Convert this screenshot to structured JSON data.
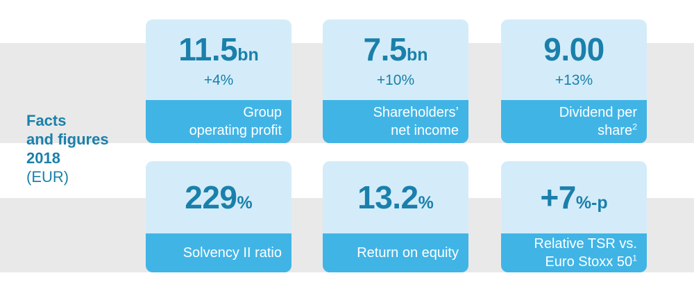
{
  "title": {
    "lines": [
      "Facts",
      "and figures",
      "2018"
    ],
    "eur": "(EUR)"
  },
  "colors": {
    "accent_teal": "#1a80ab",
    "card_top_bg": "#d4ecf9",
    "card_footer_bg": "#41b4e6",
    "band_gray": "#e9e9e9",
    "footer_text": "#ffffff"
  },
  "cards": [
    {
      "value": "11.5",
      "unit": "bn",
      "delta": "+4%",
      "label_lines": [
        "Group",
        "operating profit"
      ],
      "label_sup": ""
    },
    {
      "value": "7.5",
      "unit": "bn",
      "delta": "+10%",
      "label_lines": [
        "Shareholders’",
        "net income"
      ],
      "label_sup": ""
    },
    {
      "value": "9.00",
      "unit": "",
      "delta": "+13%",
      "label_lines": [
        "Dividend per",
        "share"
      ],
      "label_sup": "2"
    },
    {
      "value": "229",
      "unit": "%",
      "delta": "",
      "label_lines": [
        "Solvency II ratio",
        ""
      ],
      "label_sup": ""
    },
    {
      "value": "13.2",
      "unit": "%",
      "delta": "",
      "label_lines": [
        "Return on equity",
        ""
      ],
      "label_sup": ""
    },
    {
      "value": "+7",
      "unit": "%-p",
      "delta": "",
      "label_lines": [
        "Relative TSR vs.",
        "Euro Stoxx 50"
      ],
      "label_sup": "1"
    }
  ]
}
